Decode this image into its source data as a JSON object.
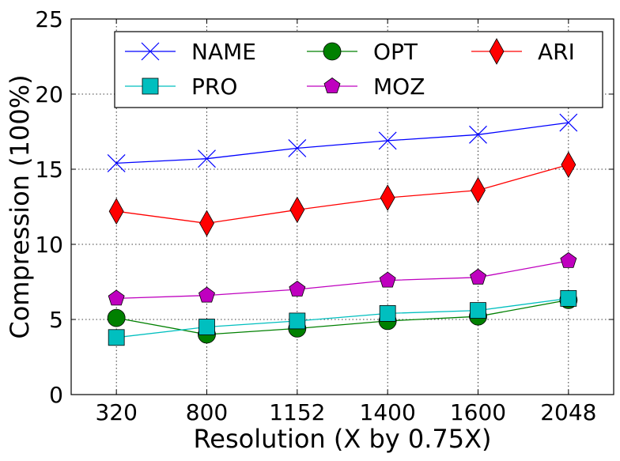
{
  "chart_data": {
    "type": "line",
    "categories": [
      "320",
      "800",
      "1152",
      "1400",
      "1600",
      "2048"
    ],
    "xlabel": "Resolution (X by 0.75X)",
    "ylabel": "Compression (100%)",
    "ylim": [
      0,
      25
    ],
    "yticks": [
      "0",
      "5",
      "10",
      "15",
      "20",
      "25"
    ],
    "grid": true,
    "legend_position": "top-center",
    "legend_columns": 3,
    "series": [
      {
        "name": "NAME",
        "color": "#0000ff",
        "marker": "x",
        "values": [
          15.4,
          15.7,
          16.4,
          16.9,
          17.3,
          18.1
        ]
      },
      {
        "name": "OPT",
        "color": "#008000",
        "marker": "circle",
        "values": [
          5.1,
          4.0,
          4.4,
          4.9,
          5.2,
          6.3
        ]
      },
      {
        "name": "ARI",
        "color": "#ff0000",
        "marker": "diamond",
        "values": [
          12.2,
          11.4,
          12.3,
          13.1,
          13.6,
          15.3
        ]
      },
      {
        "name": "PRO",
        "color": "#00bfbf",
        "marker": "square",
        "values": [
          3.8,
          4.5,
          4.9,
          5.4,
          5.6,
          6.4
        ]
      },
      {
        "name": "MOZ",
        "color": "#bf00bf",
        "marker": "pentagon",
        "values": [
          6.4,
          6.6,
          7.0,
          7.6,
          7.8,
          8.9
        ]
      }
    ]
  }
}
